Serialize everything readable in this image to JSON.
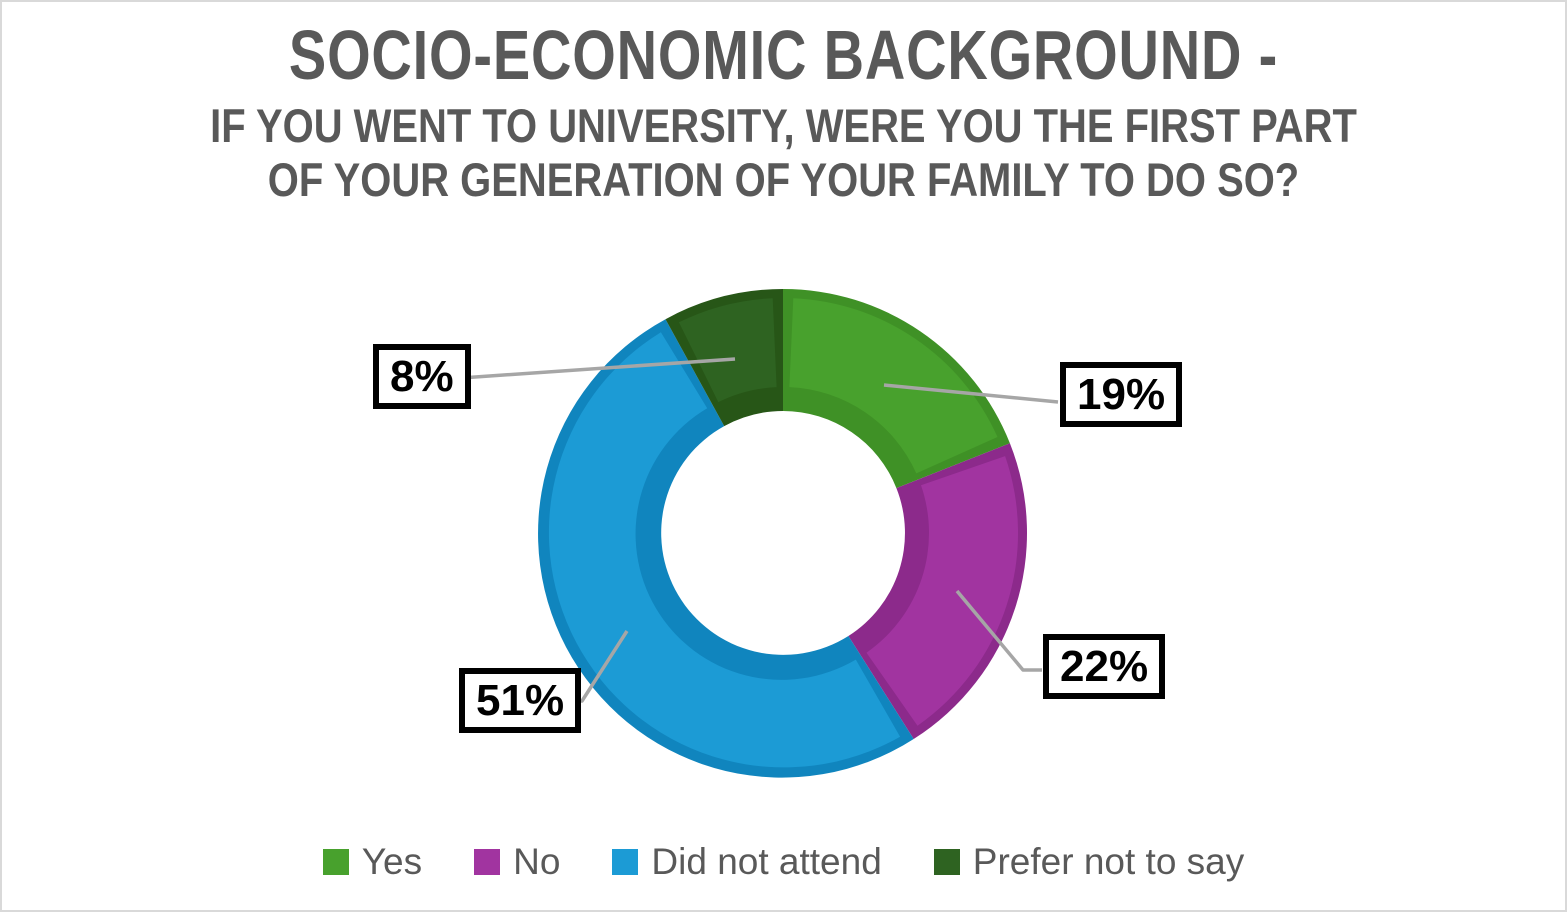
{
  "title": {
    "line1": "SOCIO-ECONOMIC BACKGROUND -",
    "line2": "IF YOU WENT TO UNIVERSITY, WERE YOU THE FIRST PART",
    "line3": "OF YOUR GENERATION OF YOUR FAMILY TO DO SO?"
  },
  "chart_data": {
    "type": "pie",
    "subtype": "donut",
    "title": "SOCIO-ECONOMIC BACKGROUND - IF YOU WENT TO UNIVERSITY, WERE YOU THE FIRST PART OF YOUR GENERATION OF YOUR FAMILY TO DO SO?",
    "categories": [
      "Yes",
      "No",
      "Did not attend",
      "Prefer not to say"
    ],
    "values": [
      19,
      22,
      51,
      8
    ],
    "unit": "%",
    "start_angle_deg": 0,
    "direction": "clockwise",
    "hole_ratio": 0.5,
    "legend_position": "bottom",
    "data_labels": "percent-in-boxed-callouts",
    "segments": [
      {
        "name": "Yes",
        "value": 19,
        "label": "19%",
        "color": "#48A12D",
        "edge_color": "#3F9126"
      },
      {
        "name": "No",
        "value": 22,
        "label": "22%",
        "color": "#A134A0",
        "edge_color": "#8C2A8B"
      },
      {
        "name": "Did not attend",
        "value": 51,
        "label": "51%",
        "color": "#1C9BD5",
        "edge_color": "#1085BE"
      },
      {
        "name": "Prefer not to say",
        "value": 8,
        "label": "8%",
        "color": "#2E6321",
        "edge_color": "#275617"
      }
    ]
  },
  "colors": {
    "title_text": "#595959",
    "legend_text": "#595959",
    "leader_line": "#A6A6A6",
    "callout_background": "#FFFFFF",
    "callout_border": "#000000",
    "callout_text": "#000000",
    "canvas_background": "#FFFFFF",
    "canvas_border": "#D9D9D9",
    "donut_hole": "#FFFFFF"
  }
}
